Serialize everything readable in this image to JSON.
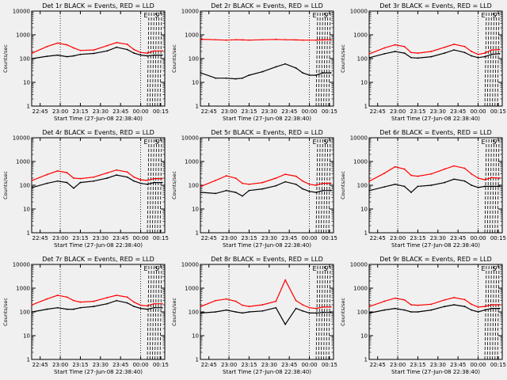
{
  "chart_data": [
    {
      "type": "line",
      "title": "Det 1r BLACK = Events, RED = LLD",
      "xlabel": "Start Time (27-Jun-08 22:38:40)",
      "ylabel": "Counts/sec",
      "yscale": "log",
      "ylim": [
        1,
        10000
      ],
      "x_ticks": [
        "22:45",
        "23:00",
        "23:15",
        "23:30",
        "23:45",
        "00:00",
        "00:15"
      ],
      "y_ticks": [
        "1",
        "10",
        "100",
        "1000",
        "10000"
      ],
      "markers": [
        "E",
        "S"
      ],
      "series": [
        {
          "name": "BLACK = Events",
          "color": "#000000",
          "x": [
            "22:39",
            "22:50",
            "22:58",
            "23:05",
            "23:10",
            "23:15",
            "23:25",
            "23:35",
            "23:42",
            "23:50",
            "23:55",
            "24:00",
            "24:05",
            "24:10",
            "24:16"
          ],
          "values": [
            100,
            125,
            140,
            120,
            130,
            150,
            165,
            210,
            300,
            240,
            170,
            140,
            130,
            140,
            140
          ]
        },
        {
          "name": "RED = LLD",
          "color": "#ff0000",
          "x": [
            "22:39",
            "22:50",
            "22:58",
            "23:05",
            "23:10",
            "23:15",
            "23:25",
            "23:35",
            "23:42",
            "23:50",
            "23:55",
            "24:00",
            "24:05",
            "24:10",
            "24:16"
          ],
          "values": [
            170,
            320,
            450,
            380,
            280,
            220,
            230,
            350,
            470,
            400,
            240,
            180,
            170,
            210,
            210
          ]
        }
      ]
    },
    {
      "type": "line",
      "title": "Det 2r BLACK = Events, RED = LLD",
      "xlabel": "Start Time (27-Jun-08 22:38:40)",
      "ylabel": "Counts/sec",
      "yscale": "log",
      "ylim": [
        1,
        10000
      ],
      "x_ticks": [
        "22:45",
        "23:00",
        "23:15",
        "23:30",
        "23:45",
        "00:00",
        "00:15"
      ],
      "y_ticks": [
        "1",
        "10",
        "100",
        "1000",
        "10000"
      ],
      "markers": [
        "E",
        "S"
      ],
      "series": [
        {
          "name": "BLACK = Events",
          "color": "#000000",
          "x": [
            "22:39",
            "22:50",
            "22:58",
            "23:05",
            "23:10",
            "23:15",
            "23:25",
            "23:35",
            "23:42",
            "23:50",
            "23:55",
            "24:00",
            "24:05",
            "24:10",
            "24:16"
          ],
          "values": [
            25,
            15,
            15,
            14,
            15,
            20,
            28,
            45,
            60,
            40,
            25,
            20,
            20,
            25,
            25
          ]
        },
        {
          "name": "RED = LLD",
          "color": "#ff0000",
          "x": [
            "22:39",
            "22:50",
            "22:58",
            "23:05",
            "23:10",
            "23:15",
            "23:25",
            "23:35",
            "23:42",
            "23:50",
            "23:55",
            "24:00",
            "24:05",
            "24:10",
            "24:16"
          ],
          "values": [
            650,
            620,
            600,
            620,
            610,
            600,
            620,
            640,
            620,
            610,
            600,
            600,
            600,
            610,
            610
          ]
        }
      ]
    },
    {
      "type": "line",
      "title": "Det 3r BLACK = Events, RED = LLD",
      "xlabel": "Start Time (27-Jun-08 22:38:40)",
      "ylabel": "Counts/sec",
      "yscale": "log",
      "ylim": [
        1,
        10000
      ],
      "x_ticks": [
        "22:45",
        "23:00",
        "23:15",
        "23:30",
        "23:45",
        "00:00",
        "00:15"
      ],
      "y_ticks": [
        "1",
        "10",
        "100",
        "1000",
        "10000"
      ],
      "markers": [
        "E",
        "S"
      ],
      "series": [
        {
          "name": "BLACK = Events",
          "color": "#000000",
          "x": [
            "22:39",
            "22:50",
            "22:58",
            "23:05",
            "23:10",
            "23:15",
            "23:25",
            "23:35",
            "23:42",
            "23:50",
            "23:55",
            "24:00",
            "24:05",
            "24:10",
            "24:16"
          ],
          "values": [
            110,
            160,
            200,
            170,
            110,
            105,
            120,
            170,
            230,
            180,
            130,
            110,
            120,
            150,
            160
          ]
        },
        {
          "name": "RED = LLD",
          "color": "#ff0000",
          "x": [
            "22:39",
            "22:50",
            "22:58",
            "23:05",
            "23:10",
            "23:15",
            "23:25",
            "23:35",
            "23:42",
            "23:50",
            "23:55",
            "24:00",
            "24:05",
            "24:10",
            "24:16"
          ],
          "values": [
            160,
            280,
            380,
            320,
            180,
            170,
            200,
            300,
            400,
            320,
            200,
            150,
            170,
            230,
            240
          ]
        }
      ]
    },
    {
      "type": "line",
      "title": "Det 4r BLACK = Events, RED = LLD",
      "xlabel": "Start Time (27-Jun-08 22:38:40)",
      "ylabel": "Counts/sec",
      "yscale": "log",
      "ylim": [
        1,
        10000
      ],
      "x_ticks": [
        "22:45",
        "23:00",
        "23:15",
        "23:30",
        "23:45",
        "00:00",
        "00:15"
      ],
      "y_ticks": [
        "1",
        "10",
        "100",
        "1000",
        "10000"
      ],
      "markers": [
        "E",
        "S"
      ],
      "series": [
        {
          "name": "BLACK = Events",
          "color": "#000000",
          "x": [
            "22:39",
            "22:50",
            "22:58",
            "23:05",
            "23:10",
            "23:15",
            "23:25",
            "23:35",
            "23:42",
            "23:50",
            "23:55",
            "24:00",
            "24:05",
            "24:10",
            "24:16"
          ],
          "values": [
            80,
            120,
            150,
            130,
            75,
            130,
            150,
            200,
            270,
            220,
            150,
            120,
            110,
            130,
            130
          ]
        },
        {
          "name": "RED = LLD",
          "color": "#ff0000",
          "x": [
            "22:39",
            "22:50",
            "22:58",
            "23:05",
            "23:10",
            "23:15",
            "23:25",
            "23:35",
            "23:42",
            "23:50",
            "23:55",
            "24:00",
            "24:05",
            "24:10",
            "24:16"
          ],
          "values": [
            160,
            280,
            400,
            340,
            200,
            190,
            220,
            330,
            440,
            360,
            220,
            170,
            160,
            190,
            190
          ]
        }
      ]
    },
    {
      "type": "line",
      "title": "Det 5r BLACK = Events, RED = LLD",
      "xlabel": "Start Time (27-Jun-08 22:38:40)",
      "ylabel": "Counts/sec",
      "yscale": "log",
      "ylim": [
        1,
        10000
      ],
      "x_ticks": [
        "22:45",
        "23:00",
        "23:15",
        "23:30",
        "23:45",
        "00:00",
        "00:15"
      ],
      "y_ticks": [
        "1",
        "10",
        "100",
        "1000",
        "10000"
      ],
      "markers": [
        "E",
        "S"
      ],
      "series": [
        {
          "name": "BLACK = Events",
          "color": "#000000",
          "x": [
            "22:39",
            "22:50",
            "22:58",
            "23:05",
            "23:10",
            "23:15",
            "23:25",
            "23:35",
            "23:42",
            "23:50",
            "23:55",
            "24:00",
            "24:05",
            "24:10",
            "24:16"
          ],
          "values": [
            50,
            45,
            60,
            50,
            35,
            60,
            70,
            95,
            140,
            110,
            70,
            55,
            50,
            60,
            60
          ]
        },
        {
          "name": "RED = LLD",
          "color": "#ff0000",
          "x": [
            "22:39",
            "22:50",
            "22:58",
            "23:05",
            "23:10",
            "23:15",
            "23:25",
            "23:35",
            "23:42",
            "23:50",
            "23:55",
            "24:00",
            "24:05",
            "24:10",
            "24:16"
          ],
          "values": [
            90,
            160,
            250,
            200,
            120,
            110,
            130,
            200,
            290,
            240,
            150,
            110,
            100,
            120,
            120
          ]
        }
      ]
    },
    {
      "type": "line",
      "title": "Det 6r BLACK = Events, RED = LLD",
      "xlabel": "Start Time (27-Jun-08 22:38:40)",
      "ylabel": "Counts/sec",
      "yscale": "log",
      "ylim": [
        1,
        10000
      ],
      "x_ticks": [
        "22:45",
        "23:00",
        "23:15",
        "23:30",
        "23:45",
        "00:00",
        "00:15"
      ],
      "y_ticks": [
        "1",
        "10",
        "100",
        "1000",
        "10000"
      ],
      "markers": [
        "E",
        "S"
      ],
      "series": [
        {
          "name": "BLACK = Events",
          "color": "#000000",
          "x": [
            "22:39",
            "22:50",
            "22:58",
            "23:05",
            "23:10",
            "23:15",
            "23:25",
            "23:35",
            "23:42",
            "23:50",
            "23:55",
            "24:00",
            "24:05",
            "24:10",
            "24:16"
          ],
          "values": [
            60,
            85,
            110,
            90,
            50,
            90,
            100,
            130,
            180,
            150,
            100,
            80,
            90,
            90,
            90
          ]
        },
        {
          "name": "RED = LLD",
          "color": "#ff0000",
          "x": [
            "22:39",
            "22:50",
            "22:58",
            "23:05",
            "23:10",
            "23:15",
            "23:25",
            "23:35",
            "23:42",
            "23:50",
            "23:55",
            "24:00",
            "24:05",
            "24:10",
            "24:16"
          ],
          "values": [
            150,
            320,
            600,
            480,
            260,
            240,
            300,
            480,
            650,
            520,
            300,
            200,
            170,
            210,
            200
          ]
        }
      ]
    },
    {
      "type": "line",
      "title": "Det 7r BLACK = Events, RED = LLD",
      "xlabel": "Start Time (27-Jun-08 22:38:40)",
      "ylabel": "Counts/sec",
      "yscale": "log",
      "ylim": [
        1,
        10000
      ],
      "x_ticks": [
        "22:45",
        "23:00",
        "23:15",
        "23:30",
        "23:45",
        "00:00",
        "00:15"
      ],
      "y_ticks": [
        "1",
        "10",
        "100",
        "1000",
        "10000"
      ],
      "markers": [
        "E",
        "S"
      ],
      "series": [
        {
          "name": "BLACK = Events",
          "color": "#000000",
          "x": [
            "22:39",
            "22:50",
            "22:58",
            "23:05",
            "23:10",
            "23:15",
            "23:25",
            "23:35",
            "23:42",
            "23:50",
            "23:55",
            "24:00",
            "24:05",
            "24:10",
            "24:16"
          ],
          "values": [
            100,
            130,
            150,
            130,
            130,
            150,
            170,
            220,
            300,
            240,
            170,
            140,
            130,
            150,
            150
          ]
        },
        {
          "name": "RED = LLD",
          "color": "#ff0000",
          "x": [
            "22:39",
            "22:50",
            "22:58",
            "23:05",
            "23:10",
            "23:15",
            "23:25",
            "23:35",
            "23:42",
            "23:50",
            "23:55",
            "24:00",
            "24:05",
            "24:10",
            "24:16"
          ],
          "values": [
            200,
            350,
            500,
            420,
            300,
            260,
            280,
            400,
            500,
            420,
            260,
            190,
            180,
            220,
            220
          ]
        }
      ]
    },
    {
      "type": "line",
      "title": "Det 8r BLACK = Events, RED = LLD",
      "xlabel": "Start Time (27-Jun-08 22:38:40)",
      "ylabel": "Counts/sec",
      "yscale": "log",
      "ylim": [
        1,
        10000
      ],
      "x_ticks": [
        "22:45",
        "23:00",
        "23:15",
        "23:30",
        "23:45",
        "00:00",
        "00:15"
      ],
      "y_ticks": [
        "1",
        "10",
        "100",
        "1000",
        "10000"
      ],
      "markers": [
        "E",
        "S"
      ],
      "series": [
        {
          "name": "BLACK = Events",
          "color": "#000000",
          "x": [
            "22:39",
            "22:50",
            "22:58",
            "23:05",
            "23:10",
            "23:15",
            "23:25",
            "23:35",
            "23:42",
            "23:50",
            "23:55",
            "24:00",
            "24:05",
            "24:10",
            "24:16"
          ],
          "values": [
            90,
            100,
            120,
            100,
            90,
            100,
            110,
            150,
            30,
            140,
            110,
            90,
            90,
            95,
            95
          ]
        },
        {
          "name": "RED = LLD",
          "color": "#ff0000",
          "x": [
            "22:39",
            "22:50",
            "22:58",
            "23:05",
            "23:10",
            "23:15",
            "23:25",
            "23:35",
            "23:42",
            "23:50",
            "23:55",
            "24:00",
            "24:05",
            "24:10",
            "24:16"
          ],
          "values": [
            170,
            300,
            350,
            280,
            190,
            170,
            200,
            280,
            2200,
            300,
            200,
            150,
            140,
            160,
            160
          ]
        }
      ]
    },
    {
      "type": "line",
      "title": "Det 9r BLACK = Events, RED = LLD",
      "xlabel": "Start Time (27-Jun-08 22:38:40)",
      "ylabel": "Counts/sec",
      "yscale": "log",
      "ylim": [
        1,
        10000
      ],
      "x_ticks": [
        "22:45",
        "23:00",
        "23:15",
        "23:30",
        "23:45",
        "00:00",
        "00:15"
      ],
      "y_ticks": [
        "1",
        "10",
        "100",
        "1000",
        "10000"
      ],
      "markers": [
        "E",
        "S"
      ],
      "series": [
        {
          "name": "BLACK = Events",
          "color": "#000000",
          "x": [
            "22:39",
            "22:50",
            "22:58",
            "23:05",
            "23:10",
            "23:15",
            "23:25",
            "23:35",
            "23:42",
            "23:50",
            "23:55",
            "24:00",
            "24:05",
            "24:10",
            "24:16"
          ],
          "values": [
            90,
            120,
            140,
            120,
            100,
            100,
            120,
            170,
            200,
            170,
            120,
            100,
            120,
            140,
            140
          ]
        },
        {
          "name": "RED = LLD",
          "color": "#ff0000",
          "x": [
            "22:39",
            "22:50",
            "22:58",
            "23:05",
            "23:10",
            "23:15",
            "23:25",
            "23:35",
            "23:42",
            "23:50",
            "23:55",
            "24:00",
            "24:05",
            "24:10",
            "24:16"
          ],
          "values": [
            170,
            280,
            380,
            320,
            200,
            190,
            210,
            320,
            400,
            330,
            210,
            160,
            170,
            200,
            200
          ]
        }
      ]
    }
  ]
}
